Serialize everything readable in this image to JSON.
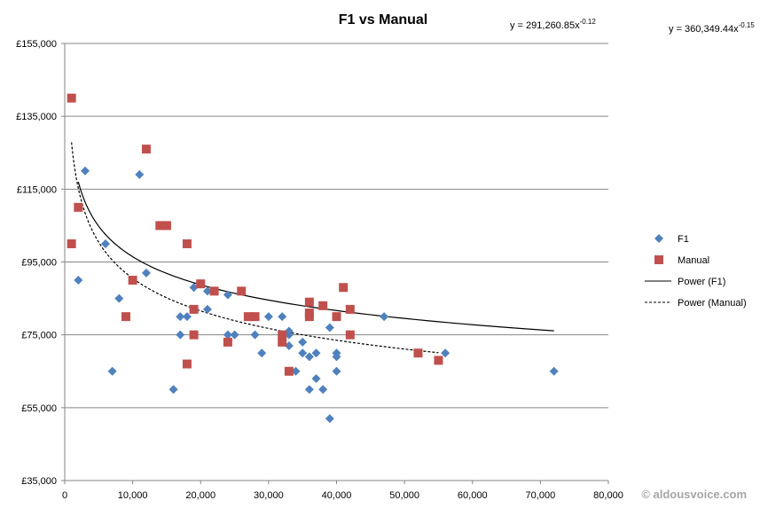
{
  "chart_data": {
    "type": "scatter",
    "title": "F1 vs Manual",
    "xlim": [
      0,
      80000
    ],
    "ylim": [
      35000,
      155000
    ],
    "x_ticks": [
      0,
      10000,
      20000,
      30000,
      40000,
      50000,
      60000,
      70000,
      80000
    ],
    "x_tick_labels": [
      "0",
      "10,000",
      "20,000",
      "30,000",
      "40,000",
      "50,000",
      "60,000",
      "70,000",
      "80,000"
    ],
    "y_ticks": [
      35000,
      55000,
      75000,
      95000,
      115000,
      135000,
      155000
    ],
    "y_tick_labels": [
      "£35,000",
      "£55,000",
      "£75,000",
      "£95,000",
      "£115,000",
      "£135,000",
      "£155,000"
    ],
    "grid": {
      "horizontal": true,
      "vertical": false
    },
    "legend_position": "right",
    "series": [
      {
        "name": "F1",
        "marker": "diamond",
        "color": "#4F81BD",
        "points": [
          [
            2000,
            90000
          ],
          [
            3000,
            120000
          ],
          [
            6000,
            100000
          ],
          [
            7000,
            65000
          ],
          [
            8000,
            85000
          ],
          [
            11000,
            119000
          ],
          [
            12000,
            92000
          ],
          [
            16000,
            60000
          ],
          [
            17000,
            80000
          ],
          [
            17000,
            75000
          ],
          [
            18000,
            80000
          ],
          [
            19000,
            88000
          ],
          [
            21000,
            87000
          ],
          [
            21000,
            82000
          ],
          [
            24000,
            86000
          ],
          [
            24000,
            75000
          ],
          [
            25000,
            75000
          ],
          [
            28000,
            75000
          ],
          [
            29000,
            70000
          ],
          [
            30000,
            80000
          ],
          [
            32000,
            80000
          ],
          [
            33000,
            76000
          ],
          [
            33000,
            72000
          ],
          [
            33000,
            75000
          ],
          [
            34000,
            65000
          ],
          [
            35000,
            73000
          ],
          [
            35000,
            70000
          ],
          [
            36000,
            69000
          ],
          [
            36000,
            60000
          ],
          [
            37000,
            63000
          ],
          [
            37000,
            70000
          ],
          [
            38000,
            60000
          ],
          [
            39000,
            77000
          ],
          [
            39000,
            52000
          ],
          [
            40000,
            69000
          ],
          [
            40000,
            70000
          ],
          [
            40000,
            65000
          ],
          [
            47000,
            80000
          ],
          [
            56000,
            70000
          ],
          [
            72000,
            65000
          ]
        ]
      },
      {
        "name": "Manual",
        "marker": "square",
        "color": "#C0504D",
        "points": [
          [
            1000,
            140000
          ],
          [
            1000,
            100000
          ],
          [
            2000,
            110000
          ],
          [
            9000,
            80000
          ],
          [
            10000,
            90000
          ],
          [
            12000,
            126000
          ],
          [
            14000,
            105000
          ],
          [
            15000,
            105000
          ],
          [
            18000,
            100000
          ],
          [
            18000,
            67000
          ],
          [
            19000,
            82000
          ],
          [
            19000,
            75000
          ],
          [
            20000,
            89000
          ],
          [
            22000,
            87000
          ],
          [
            24000,
            73000
          ],
          [
            26000,
            87000
          ],
          [
            27000,
            80000
          ],
          [
            28000,
            80000
          ],
          [
            32000,
            75000
          ],
          [
            32000,
            73000
          ],
          [
            33000,
            65000
          ],
          [
            36000,
            84000
          ],
          [
            36000,
            80000
          ],
          [
            36000,
            81000
          ],
          [
            38000,
            83000
          ],
          [
            40000,
            80000
          ],
          [
            41000,
            88000
          ],
          [
            42000,
            82000
          ],
          [
            42000,
            75000
          ],
          [
            52000,
            70000
          ],
          [
            55000,
            68000
          ]
        ]
      }
    ],
    "trendlines": [
      {
        "name": "Power (F1)",
        "style": "solid",
        "color": "#000000",
        "a": 291260.85,
        "b": -0.12,
        "x_range": [
          2000,
          72000
        ],
        "equation_label": "y = 291,260.85x",
        "equation_exponent": "-0.12"
      },
      {
        "name": "Power (Manual)",
        "style": "dashed",
        "color": "#000000",
        "a": 360349.44,
        "b": -0.15,
        "x_range": [
          1000,
          55000
        ],
        "equation_label": "y = 360,349.44x",
        "equation_exponent": "-0.15"
      }
    ],
    "watermark": "© aldousvoice.com"
  }
}
